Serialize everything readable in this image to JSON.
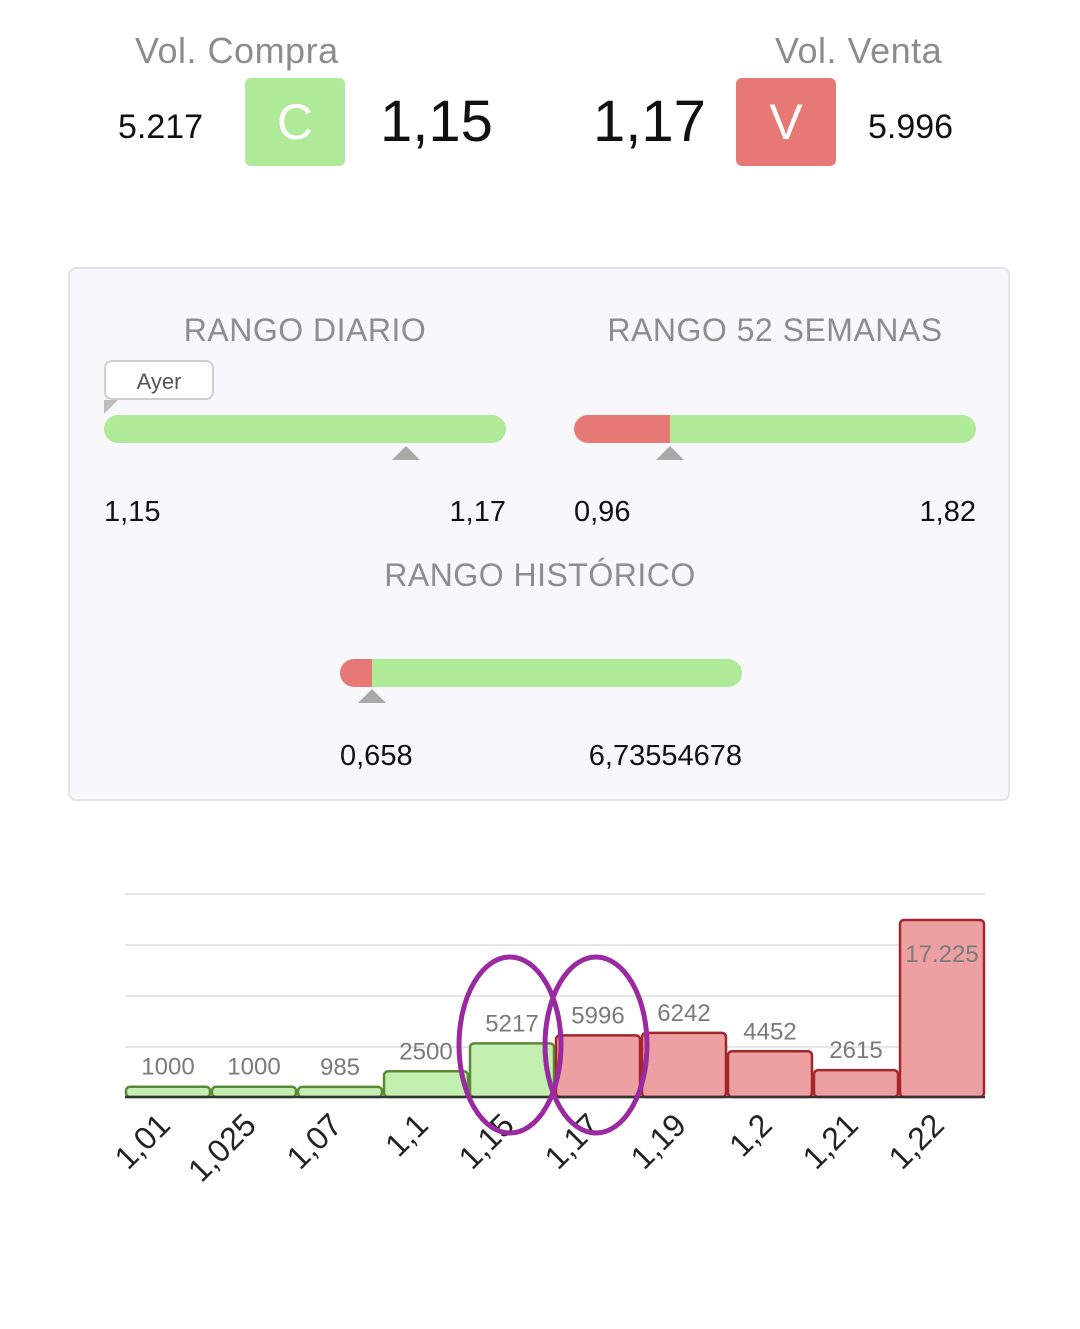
{
  "header": {
    "buy": {
      "label": "Vol. Compra",
      "volume": "5.217",
      "button": "C",
      "price": "1,15",
      "color": "#aeea98"
    },
    "sell": {
      "label": "Vol. Venta",
      "volume": "5.996",
      "button": "V",
      "price": "1,17",
      "color": "#e67876"
    }
  },
  "ranges": {
    "daily": {
      "title": "RANGO DIARIO",
      "tooltip": "Ayer",
      "min": "1,15",
      "max": "1,17",
      "red_fraction": 0.0,
      "marker_fraction": 0.75
    },
    "weeks52": {
      "title": "RANGO 52 SEMANAS",
      "min": "0,96",
      "max": "1,82",
      "red_fraction": 0.24,
      "marker_fraction": 0.24
    },
    "historic": {
      "title": "RANGO HISTÓRICO",
      "min": "0,658",
      "max": "6,73554678",
      "red_fraction": 0.08,
      "marker_fraction": 0.08
    }
  },
  "chart_data": {
    "type": "bar",
    "categories": [
      "1,01",
      "1,025",
      "1,07",
      "1,1",
      "1,15",
      "1,17",
      "1,19",
      "1,2",
      "1,21",
      "1,22"
    ],
    "values": [
      1000,
      1000,
      985,
      2500,
      5217,
      5996,
      6242,
      4452,
      2615,
      17225
    ],
    "value_labels": [
      "1000",
      "1000",
      "985",
      "2500",
      "5217",
      "5996",
      "6242",
      "4452",
      "2615",
      "17.225"
    ],
    "sides": [
      "buy",
      "buy",
      "buy",
      "buy",
      "buy",
      "sell",
      "sell",
      "sell",
      "sell",
      "sell"
    ],
    "colors": {
      "buy": "#c3f0b0",
      "buy_border": "#5a8a35",
      "sell": "#eda0a1",
      "sell_border": "#a3262a",
      "highlight": "#9a2aa0"
    },
    "highlighted": [
      "1,15",
      "1,17"
    ],
    "grid": true
  }
}
